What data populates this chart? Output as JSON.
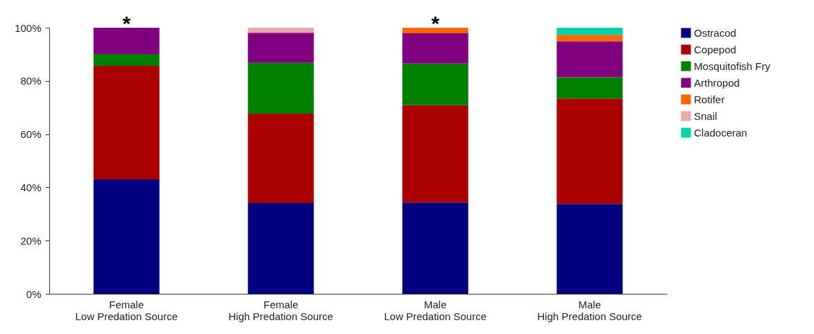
{
  "chart_data": {
    "type": "bar",
    "stacked": true,
    "categories": [
      "Female\nLow Predation Source",
      "Female\nHigh Predation Source",
      "Male\nLow Predation Source",
      "Male\nHigh Predation Source"
    ],
    "series": [
      {
        "name": "Ostracod",
        "color": "#000080",
        "values": [
          43,
          34.1,
          34.3,
          33.8
        ]
      },
      {
        "name": "Copepod",
        "color": "#aa0000",
        "values": [
          42.7,
          33.6,
          36.6,
          39.6
        ]
      },
      {
        "name": "Mosquitofish Fry",
        "color": "#008000",
        "values": [
          4.4,
          19.1,
          15.6,
          8
        ]
      },
      {
        "name": "Arthropod",
        "color": "#800080",
        "values": [
          9.9,
          11.3,
          11.4,
          13.5
        ]
      },
      {
        "name": "Rotifer",
        "color": "#ff6600",
        "values": [
          null,
          null,
          2.1,
          2.4
        ]
      },
      {
        "name": "Snail",
        "color": "#e6aaaa",
        "values": [
          null,
          1.9,
          null,
          null
        ]
      },
      {
        "name": "Cladoceran",
        "color": "#00d2aa",
        "values": [
          null,
          null,
          null,
          2.7
        ]
      }
    ],
    "ylim": [
      0,
      100
    ],
    "yticks": [
      {
        "value": 0,
        "label": "0%"
      },
      {
        "value": 20,
        "label": "20%"
      },
      {
        "value": 40,
        "label": "40%"
      },
      {
        "value": 60,
        "label": "60%"
      },
      {
        "value": 80,
        "label": "80%"
      },
      {
        "value": 100,
        "label": "100%"
      }
    ],
    "annotations": [
      {
        "text": "*",
        "x": "Female\nLow Predation Source",
        "y": 100
      },
      {
        "text": "*",
        "x": "Male\nLow Predation Source",
        "y": 100
      }
    ],
    "legend": "right",
    "grid": false
  }
}
